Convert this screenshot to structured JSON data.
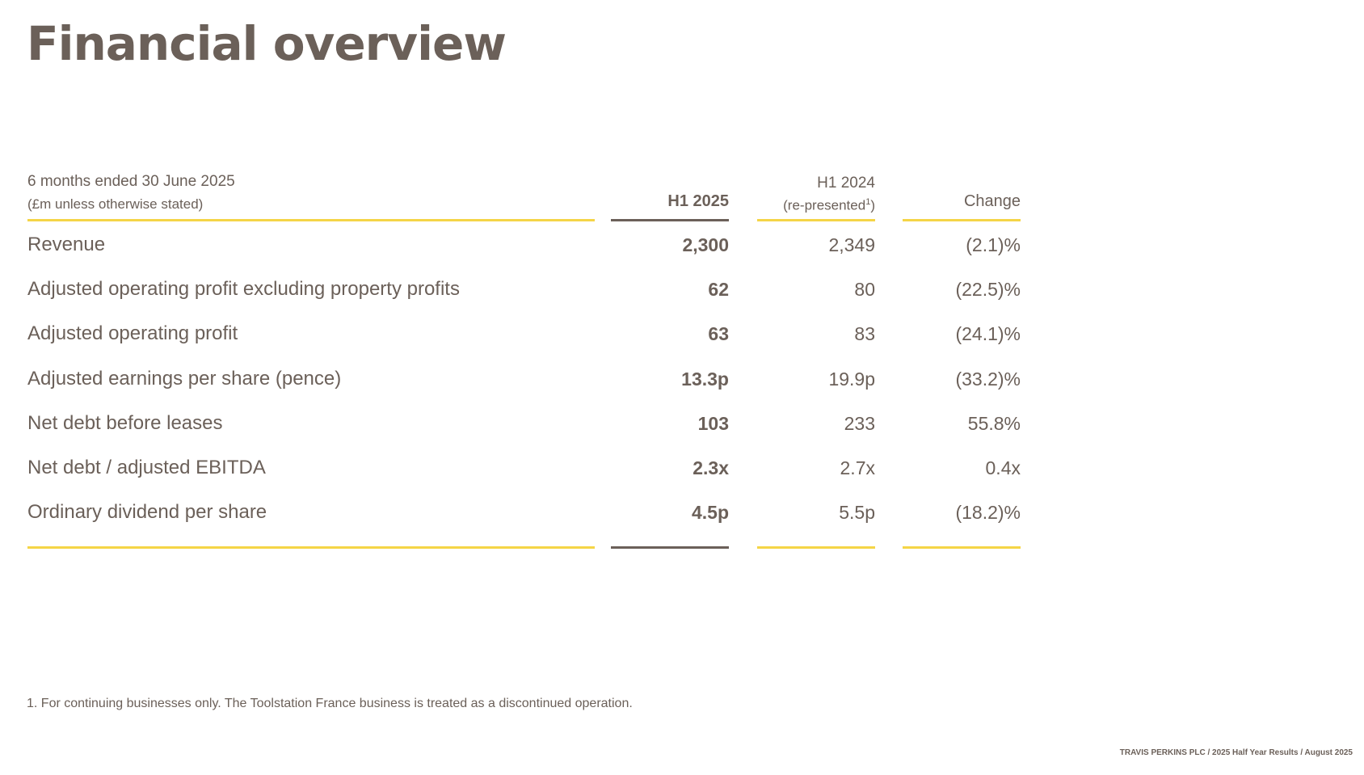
{
  "title": "Financial overview",
  "table": {
    "caption_line1": "6 months ended 30 June 2025",
    "caption_line2": "(£m unless otherwise stated)",
    "col1_header": "H1 2025",
    "col2_header_line1": "H1 2024",
    "col2_header_line2": "(re-presented",
    "col2_header_sup": "1",
    "col2_header_close": ")",
    "col3_header": "Change",
    "rows": [
      {
        "label": "Revenue",
        "h1_2025": "2,300",
        "h1_2024": "2,349",
        "change": "(2.1)%"
      },
      {
        "label": "Adjusted operating profit excluding property profits",
        "h1_2025": "62",
        "h1_2024": "80",
        "change": "(22.5)%"
      },
      {
        "label": "Adjusted operating profit",
        "h1_2025": "63",
        "h1_2024": "83",
        "change": "(24.1)%"
      },
      {
        "label": "Adjusted earnings per share (pence)",
        "h1_2025": "13.3p",
        "h1_2024": "19.9p",
        "change": "(33.2)%"
      },
      {
        "label": "Net debt before leases",
        "h1_2025": "103",
        "h1_2024": "233",
        "change": "55.8%"
      },
      {
        "label": "Net debt / adjusted EBITDA",
        "h1_2025": "2.3x",
        "h1_2024": "2.7x",
        "change": "0.4x"
      },
      {
        "label": "Ordinary dividend per share",
        "h1_2025": "4.5p",
        "h1_2024": "5.5p",
        "change": "(18.2)%"
      }
    ]
  },
  "footnote": "1. For continuing businesses only. The Toolstation France business is treated as a discontinued operation.",
  "footer": "TRAVIS PERKINS PLC / 2025 Half Year Results / August 2025",
  "colors": {
    "text": "#6b6059",
    "accent_yellow": "#f5d547",
    "rule_dark": "#6b6059"
  }
}
